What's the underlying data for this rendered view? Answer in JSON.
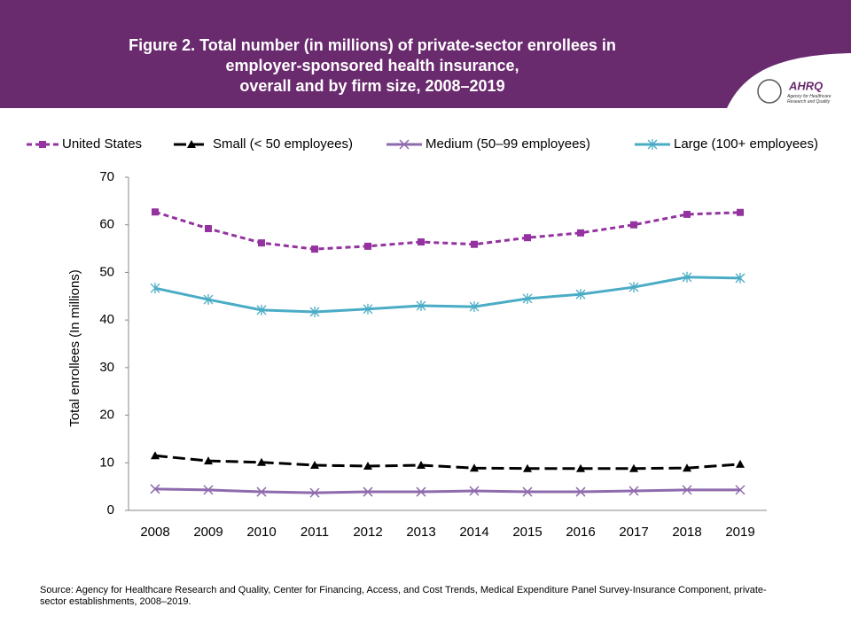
{
  "logo": {
    "name": "AHRQ",
    "subtitle": "Agency for Healthcare Research and Quality"
  },
  "chart_data": {
    "type": "line",
    "title": "Figure 2. Total number (in millions)  of private-sector enrollees in\nemployer-sponsored health insurance,\noverall and by firm size, 2008–2019",
    "y_label": "Total enrollees (In millions)",
    "source": "Source: Agency for Healthcare Research and Quality, Center for Financing, Access, and Cost Trends, Medical Expenditure Panel Survey-Insurance Component, private-sector establishments, 2008–2019.",
    "categories": [
      "2008",
      "2009",
      "2010",
      "2011",
      "2012",
      "2013",
      "2014",
      "2015",
      "2016",
      "2017",
      "2018",
      "2019"
    ],
    "ylim": [
      0,
      70
    ],
    "yticks": [
      0,
      10,
      20,
      30,
      40,
      50,
      60,
      70
    ],
    "grid": false,
    "legend": "top",
    "series": [
      {
        "name": "United States",
        "color": "#9433a0",
        "dash": "6,4",
        "marker": "square",
        "values": [
          62.7,
          59.2,
          56.2,
          54.9,
          55.5,
          56.4,
          55.9,
          57.3,
          58.3,
          60.0,
          62.2,
          62.6
        ]
      },
      {
        "name": "Small (< 50 employees)",
        "color": "#000000",
        "dash": "14,6",
        "marker": "triangle",
        "values": [
          11.5,
          10.4,
          10.1,
          9.5,
          9.3,
          9.5,
          8.9,
          8.8,
          8.8,
          8.8,
          8.9,
          9.7
        ]
      },
      {
        "name": "Medium (50–99 employees)",
        "color": "#8e6bad",
        "dash": "none",
        "marker": "x",
        "values": [
          4.5,
          4.3,
          3.9,
          3.7,
          3.9,
          3.9,
          4.1,
          3.9,
          3.9,
          4.1,
          4.3,
          4.3
        ]
      },
      {
        "name": "Large (100+ employees)",
        "color": "#4bacc6",
        "dash": "none",
        "marker": "star",
        "values": [
          46.7,
          44.3,
          42.1,
          41.7,
          42.3,
          43.0,
          42.8,
          44.5,
          45.4,
          46.9,
          49.0,
          48.8
        ]
      }
    ]
  }
}
